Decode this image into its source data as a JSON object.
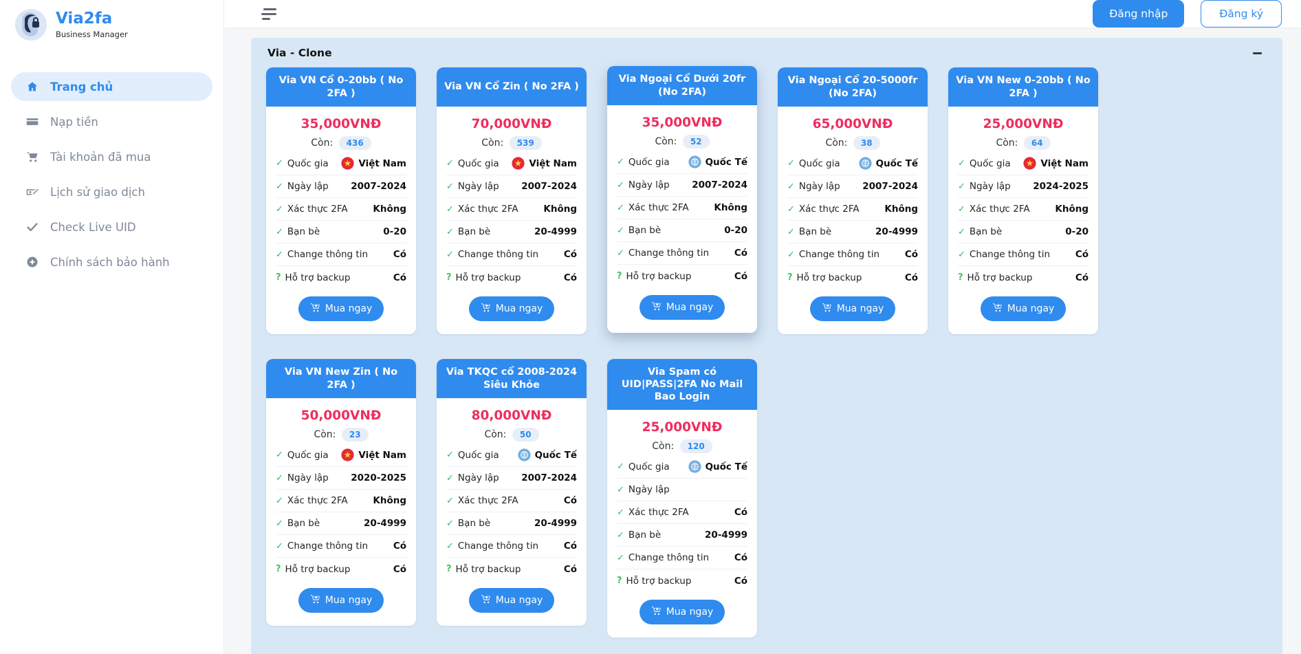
{
  "brand": {
    "title": "Via2fa",
    "subtitle": "Business Manager"
  },
  "sidebar": {
    "items": [
      {
        "label": "Trang chủ",
        "icon": "home-icon",
        "active": true
      },
      {
        "label": "Nạp tiền",
        "icon": "credit-card-icon",
        "active": false
      },
      {
        "label": "Tài khoản đã mua",
        "icon": "cart-icon",
        "active": false
      },
      {
        "label": "Lịch sử giao dịch",
        "icon": "money-check-icon",
        "active": false
      },
      {
        "label": "Check Live UID",
        "icon": "check-icon",
        "active": false
      },
      {
        "label": "Chính sách bảo hành",
        "icon": "plus-circle-icon",
        "active": false
      }
    ]
  },
  "topbar": {
    "login_label": "Đăng nhập",
    "register_label": "Đăng ký"
  },
  "section": {
    "title": "Via - Clone"
  },
  "labels": {
    "stock": "Còn:",
    "country": "Quốc gia",
    "created": "Ngày lập",
    "twofa": "Xác thực 2FA",
    "friends": "Bạn bè",
    "change": "Change thông tin",
    "backup": "Hỗ trợ backup",
    "buy": "Mua ngay"
  },
  "products": [
    {
      "title": "Via VN Cổ 0-20bb ( No 2FA )",
      "price": "35,000VNĐ",
      "stock": "436",
      "country": "Việt Nam",
      "flag": "vietnam",
      "created": "2007-2024",
      "twofa": "Không",
      "friends": "0-20",
      "change": "Có",
      "backup": "Có",
      "elevated": false
    },
    {
      "title": "Via VN Cổ Zin ( No 2FA )",
      "price": "70,000VNĐ",
      "stock": "539",
      "country": "Việt Nam",
      "flag": "vietnam",
      "created": "2007-2024",
      "twofa": "Không",
      "friends": "20-4999",
      "change": "Có",
      "backup": "Có",
      "elevated": false
    },
    {
      "title": "Via Ngoại Cổ Dưới 20fr (No 2FA)",
      "price": "35,000VNĐ",
      "stock": "52",
      "country": "Quốc Tế",
      "flag": "international",
      "created": "2007-2024",
      "twofa": "Không",
      "friends": "0-20",
      "change": "Có",
      "backup": "Có",
      "elevated": true
    },
    {
      "title": "Via Ngoại Cổ 20-5000fr (No 2FA)",
      "price": "65,000VNĐ",
      "stock": "38",
      "country": "Quốc Tế",
      "flag": "international",
      "created": "2007-2024",
      "twofa": "Không",
      "friends": "20-4999",
      "change": "Có",
      "backup": "Có",
      "elevated": false
    },
    {
      "title": "Via VN New 0-20bb ( No 2FA )",
      "price": "25,000VNĐ",
      "stock": "64",
      "country": "Việt Nam",
      "flag": "vietnam",
      "created": "2024-2025",
      "twofa": "Không",
      "friends": "0-20",
      "change": "Có",
      "backup": "Có",
      "elevated": false
    },
    {
      "title": "Via VN New Zin ( No 2FA )",
      "price": "50,000VNĐ",
      "stock": "23",
      "country": "Việt Nam",
      "flag": "vietnam",
      "created": "2020-2025",
      "twofa": "Không",
      "friends": "20-4999",
      "change": "Có",
      "backup": "Có",
      "elevated": false
    },
    {
      "title": "Via TKQC cổ 2008-2024 Siêu Khỏe",
      "price": "80,000VNĐ",
      "stock": "50",
      "country": "Quốc Tế",
      "flag": "international",
      "created": "2007-2024",
      "twofa": "Có",
      "friends": "20-4999",
      "change": "Có",
      "backup": "Có",
      "elevated": false
    },
    {
      "title": "Via Spam có UID|PASS|2FA No Mail Bao Login",
      "price": "25,000VNĐ",
      "stock": "120",
      "country": "Quốc Tế",
      "flag": "international",
      "created": "",
      "twofa": "Có",
      "friends": "20-4999",
      "change": "Có",
      "backup": "Có",
      "elevated": false
    }
  ],
  "colors": {
    "accent_blue": "#2f8bee",
    "panel_background": "#d8e7f6",
    "price_red": "#ee2d5e",
    "success_green": "#3cb561",
    "badge_background": "#e7eef8",
    "sidebar_text": "#7e8999"
  }
}
